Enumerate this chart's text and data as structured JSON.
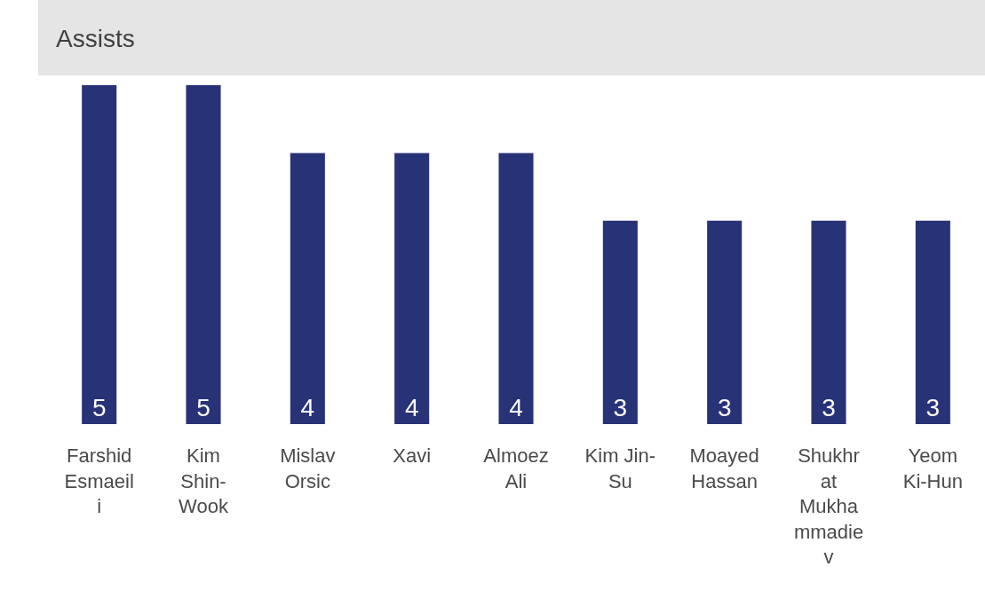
{
  "chart_data": {
    "type": "bar",
    "title": "Assists",
    "categories": [
      "Farshid Esmaeili",
      "Kim Shin-Wook",
      "Mislav Orsic",
      "Xavi",
      "Almoez Ali",
      "Kim Jin-Su",
      "Moayed Hassan",
      "Shukhrat Mukhammadiev",
      "Yeom Ki-Hun"
    ],
    "values": [
      5,
      5,
      4,
      4,
      4,
      3,
      3,
      3,
      3
    ],
    "color": "#283277",
    "ylim": [
      0,
      5
    ],
    "data_labels": true,
    "tick_labels": "x"
  }
}
